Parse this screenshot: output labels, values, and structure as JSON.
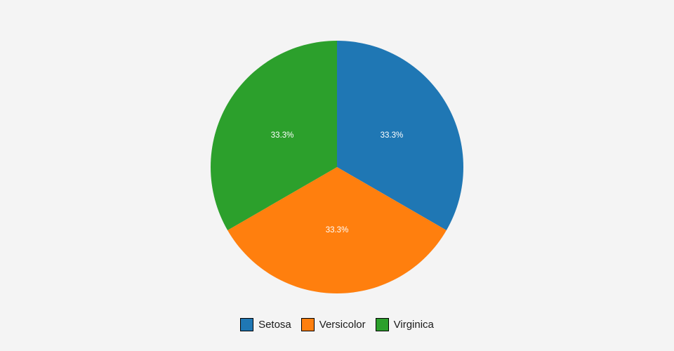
{
  "page": {
    "background": "#f4f4f4"
  },
  "chart_data": {
    "type": "pie",
    "title": "",
    "labels": [
      "Setosa",
      "Versicolor",
      "Virginica"
    ],
    "values": [
      33.3333,
      33.3333,
      33.3333
    ],
    "unit": "%",
    "slice_label_texts": [
      "33.3%",
      "33.3%",
      "33.3%"
    ],
    "colors": [
      "#1f77b4",
      "#ff7f0e",
      "#2ca02c"
    ],
    "start_angle": "top",
    "direction": "clockwise",
    "slice_label_color": "#ffffff",
    "legend": {
      "position": "bottom",
      "entries": [
        "Setosa",
        "Versicolor",
        "Virginica"
      ],
      "swatch_border_color": "#000000",
      "text_color": "#1a1a1a"
    }
  }
}
